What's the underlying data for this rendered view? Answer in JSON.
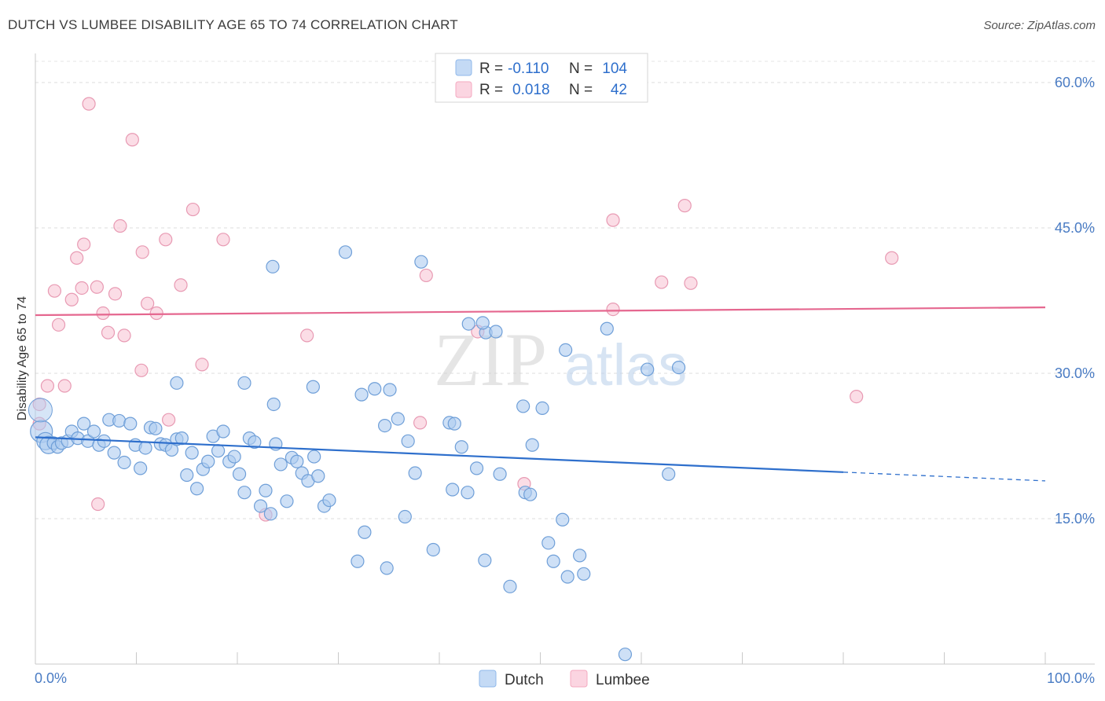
{
  "header": {
    "title": "DUTCH VS LUMBEE DISABILITY AGE 65 TO 74 CORRELATION CHART",
    "source": "Source: ZipAtlas.com"
  },
  "watermark": {
    "zip": "ZIP",
    "atlas": "atlas"
  },
  "legend_box": {
    "rows": [
      {
        "r_label": "R =",
        "r_value": "-0.110",
        "n_label": "N =",
        "n_value": "104",
        "color": "#8fb8ea"
      },
      {
        "r_label": "R =",
        "r_value": "0.018",
        "n_label": "N =",
        "n_value": "42",
        "color": "#f4a9c0"
      }
    ]
  },
  "bottom_legend": [
    {
      "label": "Dutch",
      "color": "#aecbf0"
    },
    {
      "label": "Lumbee",
      "color": "#f8c6d5"
    }
  ],
  "chart_data": {
    "type": "scatter",
    "title": "DUTCH VS LUMBEE DISABILITY AGE 65 TO 74 CORRELATION CHART",
    "xlabel": "",
    "ylabel": "Disability Age 65 to 74",
    "xlim": [
      0,
      100
    ],
    "ylim": [
      0,
      63
    ],
    "x_tick_labels": [
      "0.0%",
      "100.0%"
    ],
    "y_ticks": [
      15,
      30,
      45,
      60
    ],
    "y_tick_labels": [
      "15.0%",
      "30.0%",
      "45.0%",
      "60.0%"
    ],
    "grid": "horizontal dashed",
    "legend_position": "bottom-center",
    "colors": {
      "dutch_fill": "#aecbf0",
      "dutch_stroke": "#6f9fd8",
      "dutch_line": "#2e6fcc",
      "lumbee_fill": "#f8c6d5",
      "lumbee_stroke": "#e89ab3",
      "lumbee_line": "#e5678f"
    },
    "series": [
      {
        "name": "Dutch",
        "r": -0.11,
        "n": 104,
        "trend": {
          "x": [
            0,
            80
          ],
          "y": [
            23.4,
            19.8
          ],
          "dashed_to": [
            100,
            18.9
          ]
        },
        "points": [
          [
            0.6,
            24.0
          ],
          [
            1.0,
            23.0
          ],
          [
            1.3,
            22.6
          ],
          [
            1.8,
            22.8
          ],
          [
            2.2,
            22.4
          ],
          [
            2.6,
            22.8
          ],
          [
            3.2,
            23.0
          ],
          [
            3.6,
            24.0
          ],
          [
            4.2,
            23.3
          ],
          [
            4.8,
            24.8
          ],
          [
            5.2,
            23.0
          ],
          [
            5.8,
            24.0
          ],
          [
            6.3,
            22.6
          ],
          [
            6.8,
            23.0
          ],
          [
            7.3,
            25.2
          ],
          [
            7.8,
            21.8
          ],
          [
            8.3,
            25.1
          ],
          [
            8.8,
            20.8
          ],
          [
            9.4,
            24.8
          ],
          [
            9.9,
            22.6
          ],
          [
            10.4,
            20.2
          ],
          [
            10.9,
            22.3
          ],
          [
            11.4,
            24.4
          ],
          [
            11.9,
            24.3
          ],
          [
            12.4,
            22.7
          ],
          [
            12.9,
            22.6
          ],
          [
            13.5,
            22.1
          ],
          [
            14.0,
            23.2
          ],
          [
            14.5,
            23.3
          ],
          [
            15.0,
            19.5
          ],
          [
            15.5,
            21.8
          ],
          [
            16.0,
            18.1
          ],
          [
            16.6,
            20.1
          ],
          [
            17.1,
            20.9
          ],
          [
            17.6,
            23.5
          ],
          [
            18.1,
            22.0
          ],
          [
            18.6,
            24.0
          ],
          [
            19.2,
            20.9
          ],
          [
            19.7,
            21.4
          ],
          [
            20.2,
            19.6
          ],
          [
            20.7,
            17.7
          ],
          [
            21.2,
            23.3
          ],
          [
            21.7,
            22.9
          ],
          [
            22.3,
            16.3
          ],
          [
            22.8,
            17.9
          ],
          [
            23.3,
            15.5
          ],
          [
            23.8,
            22.7
          ],
          [
            24.3,
            20.6
          ],
          [
            24.9,
            16.8
          ],
          [
            25.4,
            21.3
          ],
          [
            25.9,
            20.9
          ],
          [
            26.4,
            19.7
          ],
          [
            27.0,
            18.9
          ],
          [
            27.6,
            21.4
          ],
          [
            28.0,
            19.4
          ],
          [
            28.6,
            16.3
          ],
          [
            29.1,
            16.9
          ],
          [
            20.7,
            29.0
          ],
          [
            14.0,
            29.0
          ],
          [
            23.6,
            26.8
          ],
          [
            27.5,
            28.6
          ],
          [
            32.3,
            27.8
          ],
          [
            33.6,
            28.4
          ],
          [
            35.1,
            28.3
          ],
          [
            34.6,
            24.6
          ],
          [
            35.9,
            25.3
          ],
          [
            36.9,
            23.0
          ],
          [
            38.2,
            41.5
          ],
          [
            30.7,
            42.5
          ],
          [
            23.5,
            41.0
          ],
          [
            41.0,
            24.9
          ],
          [
            41.5,
            24.8
          ],
          [
            42.2,
            22.4
          ],
          [
            41.3,
            18.0
          ],
          [
            42.8,
            17.7
          ],
          [
            42.9,
            35.1
          ],
          [
            44.6,
            34.2
          ],
          [
            44.3,
            35.2
          ],
          [
            45.6,
            34.3
          ],
          [
            48.3,
            26.6
          ],
          [
            50.2,
            26.4
          ],
          [
            49.2,
            22.6
          ],
          [
            48.5,
            17.7
          ],
          [
            49.0,
            17.5
          ],
          [
            46.0,
            19.6
          ],
          [
            52.5,
            32.4
          ],
          [
            56.6,
            34.6
          ],
          [
            60.6,
            30.4
          ],
          [
            52.2,
            14.9
          ],
          [
            50.8,
            12.5
          ],
          [
            37.6,
            19.7
          ],
          [
            43.7,
            20.2
          ],
          [
            36.6,
            15.2
          ],
          [
            32.6,
            13.6
          ],
          [
            31.9,
            10.6
          ],
          [
            34.8,
            9.9
          ],
          [
            39.4,
            11.8
          ],
          [
            44.5,
            10.7
          ],
          [
            47.0,
            8.0
          ],
          [
            51.3,
            10.6
          ],
          [
            52.7,
            9.0
          ],
          [
            53.9,
            11.2
          ],
          [
            54.3,
            9.3
          ],
          [
            58.4,
            1.0
          ],
          [
            62.7,
            19.6
          ],
          [
            63.7,
            30.6
          ]
        ]
      },
      {
        "name": "Lumbee",
        "r": 0.018,
        "n": 42,
        "trend": {
          "x": [
            0,
            100
          ],
          "y": [
            36.0,
            36.8
          ]
        },
        "points": [
          [
            0.4,
            26.8
          ],
          [
            1.2,
            28.7
          ],
          [
            1.9,
            38.5
          ],
          [
            2.3,
            35.0
          ],
          [
            2.9,
            28.7
          ],
          [
            3.6,
            37.6
          ],
          [
            4.1,
            41.9
          ],
          [
            4.6,
            38.8
          ],
          [
            4.8,
            43.3
          ],
          [
            5.3,
            57.8
          ],
          [
            6.1,
            38.9
          ],
          [
            6.2,
            16.5
          ],
          [
            6.7,
            36.2
          ],
          [
            7.2,
            34.2
          ],
          [
            7.9,
            38.2
          ],
          [
            8.4,
            45.2
          ],
          [
            8.8,
            33.9
          ],
          [
            9.6,
            54.1
          ],
          [
            10.6,
            42.5
          ],
          [
            10.5,
            30.3
          ],
          [
            11.1,
            37.2
          ],
          [
            12.0,
            36.2
          ],
          [
            12.9,
            43.8
          ],
          [
            13.2,
            25.2
          ],
          [
            14.4,
            39.1
          ],
          [
            15.6,
            46.9
          ],
          [
            16.5,
            30.9
          ],
          [
            18.6,
            43.8
          ],
          [
            22.8,
            15.4
          ],
          [
            26.9,
            33.9
          ],
          [
            38.7,
            40.1
          ],
          [
            38.1,
            24.9
          ],
          [
            43.8,
            34.3
          ],
          [
            48.4,
            18.6
          ],
          [
            57.2,
            45.8
          ],
          [
            57.2,
            36.6
          ],
          [
            62.0,
            39.4
          ],
          [
            64.3,
            47.3
          ],
          [
            64.9,
            39.3
          ],
          [
            81.3,
            27.6
          ],
          [
            84.8,
            41.9
          ],
          [
            0.4,
            24.8
          ]
        ]
      }
    ]
  }
}
